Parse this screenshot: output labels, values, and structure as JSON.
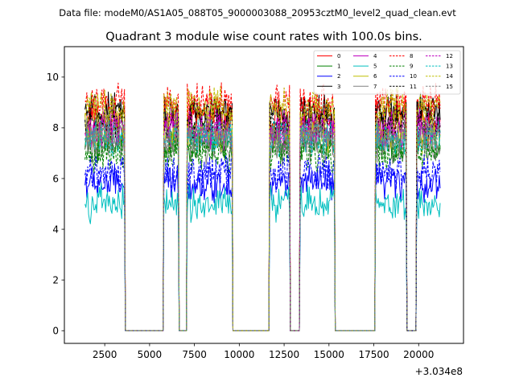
{
  "figure": {
    "suptitle": "Data file: modeM0/AS1A05_088T05_9000003088_20953cztM0_level2_quad_clean.evt"
  },
  "chart_data": {
    "type": "line",
    "title": "Quadrant 3 module wise count rates with 100.0s bins.",
    "xlabel": "",
    "ylabel": "",
    "x_offset_label": "+3.034e8",
    "xlim": [
      250,
      22500
    ],
    "ylim": [
      -0.5,
      11.2
    ],
    "x_ticks": [
      2500,
      5000,
      7500,
      10000,
      12500,
      15000,
      17500,
      20000
    ],
    "y_ticks": [
      0,
      2,
      4,
      6,
      8,
      10
    ],
    "legend_position": "top-right",
    "active_windows": [
      [
        1400,
        3600
      ],
      [
        5800,
        6600
      ],
      [
        7100,
        9600
      ],
      [
        11700,
        12800
      ],
      [
        13400,
        15300
      ],
      [
        17600,
        19300
      ],
      [
        19900,
        21200
      ]
    ],
    "series": [
      {
        "name": "0",
        "color": "#ff0000",
        "dash": "solid",
        "level": 8.4
      },
      {
        "name": "1",
        "color": "#008000",
        "dash": "solid",
        "level": 7.4
      },
      {
        "name": "2",
        "color": "#0000ff",
        "dash": "solid",
        "level": 5.8
      },
      {
        "name": "3",
        "color": "#000000",
        "dash": "solid",
        "level": 8.6
      },
      {
        "name": "4",
        "color": "#bf00bf",
        "dash": "solid",
        "level": 7.9
      },
      {
        "name": "5",
        "color": "#00bfbf",
        "dash": "solid",
        "level": 5.0
      },
      {
        "name": "6",
        "color": "#bfbf00",
        "dash": "solid",
        "level": 7.8
      },
      {
        "name": "7",
        "color": "#808080",
        "dash": "solid",
        "level": 7.3
      },
      {
        "name": "8",
        "color": "#ff0000",
        "dash": "dashed",
        "level": 9.0
      },
      {
        "name": "9",
        "color": "#008000",
        "dash": "dashed",
        "level": 7.0
      },
      {
        "name": "10",
        "color": "#0000ff",
        "dash": "dashed",
        "level": 6.2
      },
      {
        "name": "11",
        "color": "#000000",
        "dash": "dashed",
        "level": 8.2
      },
      {
        "name": "12",
        "color": "#bf00bf",
        "dash": "dashed",
        "level": 8.0
      },
      {
        "name": "13",
        "color": "#00bfbf",
        "dash": "dashed",
        "level": 7.6
      },
      {
        "name": "14",
        "color": "#bfbf00",
        "dash": "dashed",
        "level": 8.8
      },
      {
        "name": "15",
        "color": "#808080",
        "dash": "dashed",
        "level": 7.7
      }
    ]
  }
}
